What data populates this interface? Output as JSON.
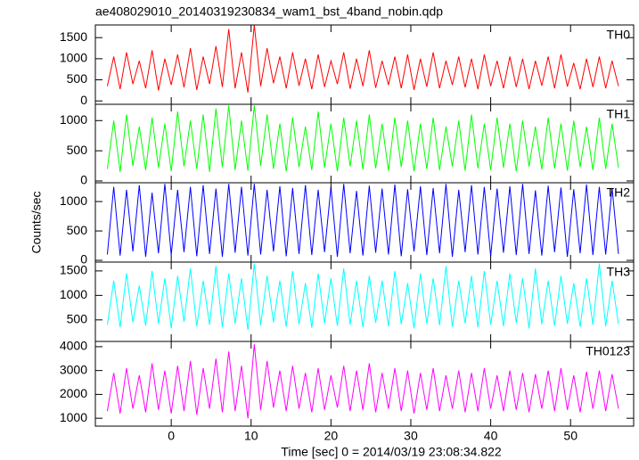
{
  "chart_data": [
    {
      "type": "line",
      "title": "ae408029010_20140319230834_wam1_bst_4band_nobin.qdp",
      "x": [
        -8,
        -7.2,
        -6.4,
        -5.6,
        -4.8,
        -4,
        -3.2,
        -2.4,
        -1.6,
        -0.8,
        0,
        0.8,
        1.6,
        2.4,
        3.2,
        4,
        4.8,
        5.6,
        6.4,
        7.2,
        8,
        8.8,
        9.6,
        10.4,
        11.2,
        12,
        12.8,
        13.6,
        14.4,
        15.2,
        16,
        16.8,
        17.6,
        18.4,
        19.2,
        20,
        20.8,
        21.6,
        22.4,
        23.2,
        24,
        24.8,
        25.6,
        26.4,
        27.2,
        28,
        28.8,
        29.6,
        30.4,
        31.2,
        32,
        32.8,
        33.6,
        34.4,
        35.2,
        36,
        36.8,
        37.6,
        38.4,
        39.2,
        40,
        40.8,
        41.6,
        42.4,
        43.2,
        44,
        44.8,
        45.6,
        46.4,
        47.2,
        48,
        48.8,
        49.6,
        50.4,
        51.2,
        52,
        52.8,
        53.6,
        54.4,
        55.2,
        56
      ],
      "xlim": [
        -9.5,
        57.9
      ],
      "ylim": [
        -80,
        1800
      ],
      "yticks": [
        0,
        500,
        1000,
        1500
      ],
      "series": [
        {
          "name": "TH0",
          "color": "#ff0000",
          "values": [
            350,
            1050,
            280,
            1150,
            400,
            950,
            300,
            1200,
            250,
            1000,
            380,
            1100,
            320,
            1250,
            260,
            1050,
            400,
            1300,
            330,
            1700,
            300,
            1150,
            200,
            1800,
            350,
            1250,
            420,
            1050,
            300,
            1150,
            360,
            1000,
            280,
            1100,
            330,
            950,
            400,
            1150,
            290,
            1000,
            350,
            1200,
            310,
            950,
            380,
            1050,
            300,
            1100,
            260,
            1000,
            340,
            1150,
            300,
            950,
            380,
            1050,
            320,
            1000,
            280,
            1100,
            350,
            950,
            300,
            1050,
            330,
            1000,
            280,
            950,
            360,
            1050,
            300,
            1100,
            340,
            900,
            280,
            1000,
            330,
            1050,
            300,
            950,
            350
          ]
        }
      ]
    },
    {
      "type": "line",
      "x": [
        -8,
        -7.2,
        -6.4,
        -5.6,
        -4.8,
        -4,
        -3.2,
        -2.4,
        -1.6,
        -0.8,
        0,
        0.8,
        1.6,
        2.4,
        3.2,
        4,
        4.8,
        5.6,
        6.4,
        7.2,
        8,
        8.8,
        9.6,
        10.4,
        11.2,
        12,
        12.8,
        13.6,
        14.4,
        15.2,
        16,
        16.8,
        17.6,
        18.4,
        19.2,
        20,
        20.8,
        21.6,
        22.4,
        23.2,
        24,
        24.8,
        25.6,
        26.4,
        27.2,
        28,
        28.8,
        29.6,
        30.4,
        31.2,
        32,
        32.8,
        33.6,
        34.4,
        35.2,
        36,
        36.8,
        37.6,
        38.4,
        39.2,
        40,
        40.8,
        41.6,
        42.4,
        43.2,
        44,
        44.8,
        45.6,
        46.4,
        47.2,
        48,
        48.8,
        49.6,
        50.4,
        51.2,
        52,
        52.8,
        53.6,
        54.4,
        55.2,
        56
      ],
      "xlim": [
        -9.5,
        57.9
      ],
      "ylim": [
        -30,
        1270
      ],
      "yticks": [
        0,
        500,
        1000
      ],
      "series": [
        {
          "name": "TH1",
          "color": "#00ff00",
          "values": [
            200,
            1000,
            150,
            1100,
            250,
            900,
            180,
            1050,
            220,
            950,
            160,
            1150,
            240,
            1000,
            200,
            1100,
            150,
            1200,
            230,
            1250,
            180,
            1000,
            170,
            1250,
            250,
            1100,
            200,
            950,
            160,
            1050,
            230,
            900,
            180,
            1150,
            220,
            950,
            160,
            1050,
            240,
            1000,
            190,
            1100,
            210,
            950,
            170,
            1050,
            230,
            1000,
            160,
            950,
            200,
            1050,
            180,
            900,
            240,
            1000,
            170,
            1100,
            210,
            950,
            180,
            1050,
            220,
            950,
            160,
            1000,
            240,
            900,
            190,
            1050,
            210,
            950,
            170,
            1000,
            230,
            900,
            180,
            1050,
            200,
            950,
            220
          ]
        }
      ]
    },
    {
      "type": "line",
      "ylabel": "Counts/sec",
      "x": [
        -8,
        -7.2,
        -6.4,
        -5.6,
        -4.8,
        -4,
        -3.2,
        -2.4,
        -1.6,
        -0.8,
        0,
        0.8,
        1.6,
        2.4,
        3.2,
        4,
        4.8,
        5.6,
        6.4,
        7.2,
        8,
        8.8,
        9.6,
        10.4,
        11.2,
        12,
        12.8,
        13.6,
        14.4,
        15.2,
        16,
        16.8,
        17.6,
        18.4,
        19.2,
        20,
        20.8,
        21.6,
        22.4,
        23.2,
        24,
        24.8,
        25.6,
        26.4,
        27.2,
        28,
        28.8,
        29.6,
        30.4,
        31.2,
        32,
        32.8,
        33.6,
        34.4,
        35.2,
        36,
        36.8,
        37.6,
        38.4,
        39.2,
        40,
        40.8,
        41.6,
        42.4,
        43.2,
        44,
        44.8,
        45.6,
        46.4,
        47.2,
        48,
        48.8,
        49.6,
        50.4,
        51.2,
        52,
        52.8,
        53.6,
        54.4,
        55.2,
        56
      ],
      "xlim": [
        -9.5,
        57.9
      ],
      "ylim": [
        -30,
        1320
      ],
      "yticks": [
        0,
        500,
        1000
      ],
      "series": [
        {
          "name": "TH2",
          "color": "#0000ff",
          "values": [
            100,
            1250,
            80,
            1200,
            150,
            1280,
            60,
            1150,
            120,
            1300,
            90,
            1200,
            140,
            1250,
            70,
            1280,
            110,
            1220,
            60,
            1300,
            130,
            1250,
            80,
            1300,
            100,
            1200,
            150,
            1260,
            70,
            1230,
            110,
            1280,
            90,
            1200,
            140,
            1250,
            60,
            1300,
            120,
            1180,
            80,
            1270,
            130,
            1220,
            100,
            1290,
            70,
            1210,
            150,
            1260,
            90,
            1230,
            120,
            1300,
            60,
            1200,
            140,
            1280,
            100,
            1250,
            70,
            1220,
            130,
            1260,
            90,
            1300,
            110,
            1190,
            80,
            1270,
            140,
            1240,
            60,
            1210,
            120,
            1290,
            90,
            1250,
            100,
            1230,
            110
          ]
        }
      ]
    },
    {
      "type": "line",
      "x": [
        -8,
        -7.2,
        -6.4,
        -5.6,
        -4.8,
        -4,
        -3.2,
        -2.4,
        -1.6,
        -0.8,
        0,
        0.8,
        1.6,
        2.4,
        3.2,
        4,
        4.8,
        5.6,
        6.4,
        7.2,
        8,
        8.8,
        9.6,
        10.4,
        11.2,
        12,
        12.8,
        13.6,
        14.4,
        15.2,
        16,
        16.8,
        17.6,
        18.4,
        19.2,
        20,
        20.8,
        21.6,
        22.4,
        23.2,
        24,
        24.8,
        25.6,
        26.4,
        27.2,
        28,
        28.8,
        29.6,
        30.4,
        31.2,
        32,
        32.8,
        33.6,
        34.4,
        35.2,
        36,
        36.8,
        37.6,
        38.4,
        39.2,
        40,
        40.8,
        41.6,
        42.4,
        43.2,
        44,
        44.8,
        45.6,
        46.4,
        47.2,
        48,
        48.8,
        49.6,
        50.4,
        51.2,
        52,
        52.8,
        53.6,
        54.4,
        55.2,
        56
      ],
      "xlim": [
        -9.5,
        57.9
      ],
      "ylim": [
        60,
        1680
      ],
      "yticks": [
        500,
        1000,
        1500
      ],
      "series": [
        {
          "name": "TH3",
          "color": "#00ffff",
          "values": [
            400,
            1300,
            350,
            1450,
            450,
            1200,
            380,
            1500,
            420,
            1350,
            330,
            1400,
            460,
            1550,
            370,
            1300,
            400,
            1600,
            350,
            1450,
            420,
            1350,
            300,
            1650,
            390,
            1400,
            450,
            1300,
            360,
            1500,
            410,
            1250,
            340,
            1450,
            430,
            1350,
            380,
            1550,
            400,
            1300,
            350,
            1400,
            440,
            1300,
            370,
            1500,
            410,
            1250,
            330,
            1450,
            420,
            1350,
            390,
            1600,
            360,
            1300,
            430,
            1400,
            350,
            1500,
            400,
            1300,
            370,
            1450,
            440,
            1350,
            330,
            1550,
            410,
            1300,
            380,
            1400,
            420,
            1250,
            360,
            1350,
            400,
            1650,
            370,
            1300,
            420
          ]
        }
      ]
    },
    {
      "type": "line",
      "xlabel": "Time [sec] 0 = 2014/03/19 23:08:34.822",
      "x": [
        -8,
        -7.2,
        -6.4,
        -5.6,
        -4.8,
        -4,
        -3.2,
        -2.4,
        -1.6,
        -0.8,
        0,
        0.8,
        1.6,
        2.4,
        3.2,
        4,
        4.8,
        5.6,
        6.4,
        7.2,
        8,
        8.8,
        9.6,
        10.4,
        11.2,
        12,
        12.8,
        13.6,
        14.4,
        15.2,
        16,
        16.8,
        17.6,
        18.4,
        19.2,
        20,
        20.8,
        21.6,
        22.4,
        23.2,
        24,
        24.8,
        25.6,
        26.4,
        27.2,
        28,
        28.8,
        29.6,
        30.4,
        31.2,
        32,
        32.8,
        33.6,
        34.4,
        35.2,
        36,
        36.8,
        37.6,
        38.4,
        39.2,
        40,
        40.8,
        41.6,
        42.4,
        43.2,
        44,
        44.8,
        45.6,
        46.4,
        47.2,
        48,
        48.8,
        49.6,
        50.4,
        51.2,
        52,
        52.8,
        53.6,
        54.4,
        55.2,
        56
      ],
      "xlim": [
        -9.5,
        57.9
      ],
      "xticks": [
        0,
        10,
        20,
        30,
        40,
        50
      ],
      "ylim": [
        670,
        4220
      ],
      "yticks": [
        1000,
        2000,
        3000,
        4000
      ],
      "series": [
        {
          "name": "TH0123",
          "color": "#ff00ff",
          "values": [
            1300,
            2900,
            1200,
            3100,
            1400,
            2800,
            1250,
            3300,
            1350,
            3000,
            1200,
            3200,
            1300,
            3400,
            1150,
            3100,
            1400,
            3500,
            1250,
            3800,
            1300,
            3200,
            1000,
            4100,
            1350,
            3400,
            1450,
            3000,
            1300,
            3200,
            1400,
            2900,
            1250,
            3100,
            1350,
            2800,
            1450,
            3200,
            1300,
            3000,
            1350,
            3300,
            1250,
            2900,
            1400,
            3100,
            1300,
            3000,
            1200,
            2900,
            1350,
            3100,
            1300,
            2800,
            1400,
            3000,
            1250,
            2900,
            1300,
            3100,
            1400,
            2800,
            1300,
            3000,
            1350,
            2900,
            1250,
            2850,
            1400,
            3000,
            1300,
            3100,
            1350,
            2800,
            1250,
            2950,
            1400,
            3000,
            1300,
            2850,
            1400
          ]
        }
      ]
    }
  ]
}
